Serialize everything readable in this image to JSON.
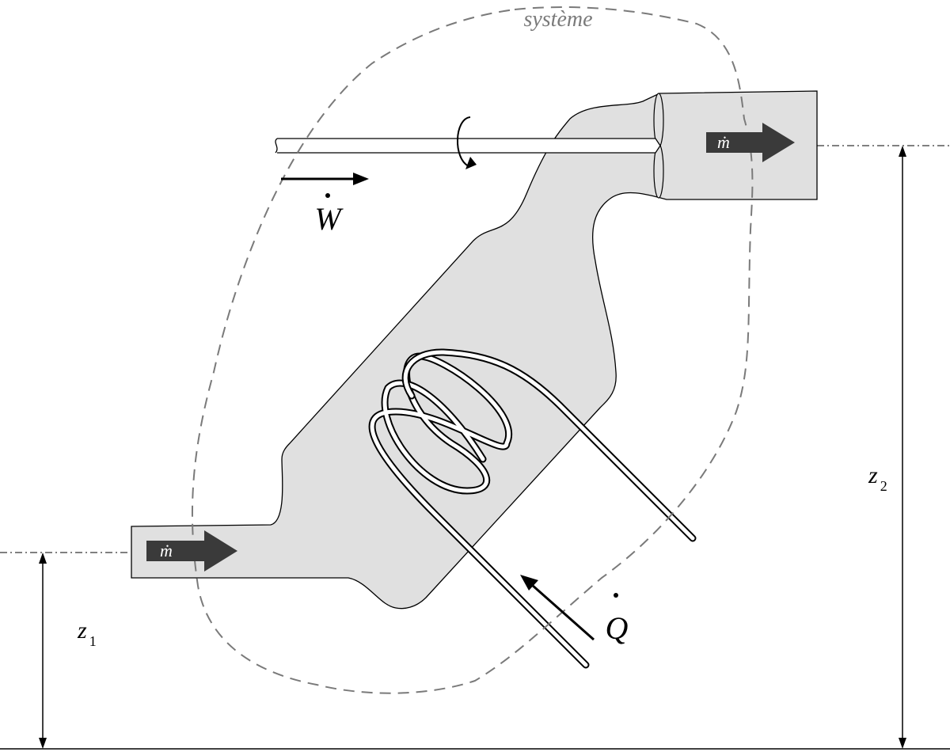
{
  "labels": {
    "system": "système",
    "mass_flow_in": "ṁ",
    "mass_flow_out": "ṁ",
    "work": "W",
    "heat": "Q",
    "z1_symbol": "z",
    "z1_sub": "1",
    "z2_symbol": "z",
    "z2_sub": "2"
  },
  "colors": {
    "fluid_fill": "#e0e0e0",
    "outline": "#000000",
    "system_boundary": "#7a7a7a",
    "flow_arrow": "#3a3a3a",
    "background": "#ffffff"
  }
}
